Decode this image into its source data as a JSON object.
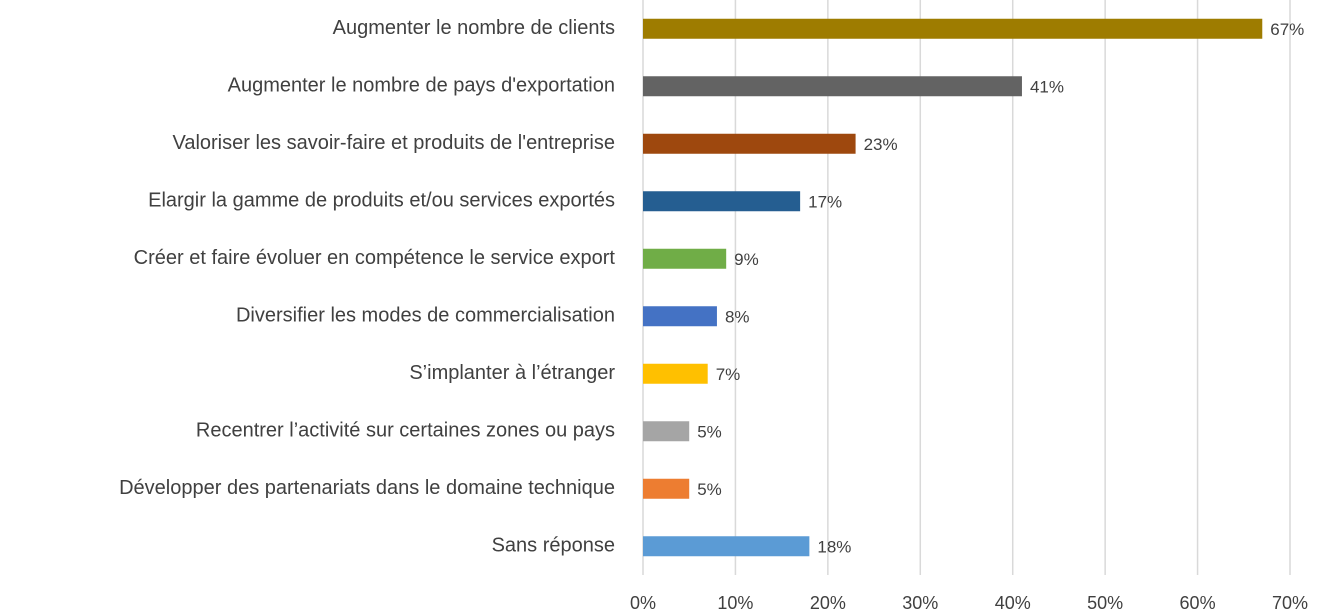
{
  "chart_data": {
    "type": "hbar",
    "categories": [
      "Augmenter le nombre de clients",
      "Augmenter le nombre de pays d'exportation",
      "Valoriser les savoir-faire et produits de l'entreprise",
      "Elargir la gamme de produits et/ou services exportés",
      "Créer et faire évoluer en compétence le service export",
      "Diversifier les modes de commercialisation",
      "S’implanter à l’étranger",
      "Recentrer l’activité sur certaines zones ou pays",
      "Développer des partenariats dans le domaine technique",
      "Sans réponse"
    ],
    "values": [
      67,
      41,
      23,
      17,
      9,
      8,
      7,
      5,
      5,
      18
    ],
    "value_labels": [
      "67%",
      "41%",
      "23%",
      "17%",
      "9%",
      "8%",
      "7%",
      "5%",
      "5%",
      "18%"
    ],
    "colors": [
      "#9e7c00",
      "#636363",
      "#9e480e",
      "#255e91",
      "#70ad47",
      "#4472c4",
      "#ffc000",
      "#a5a5a5",
      "#ed7d31",
      "#5b9bd5"
    ],
    "xlim": [
      0,
      70
    ],
    "xticks": [
      {
        "value": 0,
        "label": "0%"
      },
      {
        "value": 10,
        "label": "10%"
      },
      {
        "value": 20,
        "label": "20%"
      },
      {
        "value": 30,
        "label": "30%"
      },
      {
        "value": 40,
        "label": "40%"
      },
      {
        "value": 50,
        "label": "50%"
      },
      {
        "value": 60,
        "label": "60%"
      },
      {
        "value": 70,
        "label": "70%"
      }
    ],
    "grid": true
  }
}
